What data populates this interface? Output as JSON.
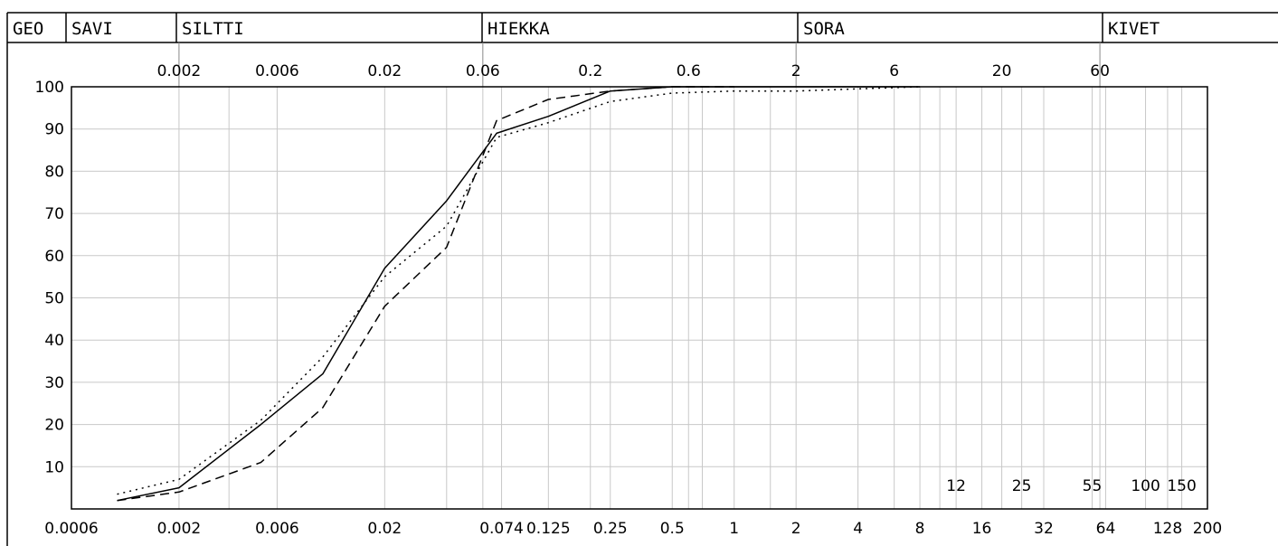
{
  "header": {
    "cells": [
      "GEO",
      "SAVI",
      "SILTTI",
      "HIEKKA",
      "SORA",
      "KIVET"
    ]
  },
  "chart_data": {
    "type": "line",
    "x_scale": "log",
    "xlim": [
      0.0006,
      200
    ],
    "ylim": [
      0,
      100
    ],
    "y_ticks": [
      10,
      20,
      30,
      40,
      50,
      60,
      70,
      80,
      90,
      100
    ],
    "bottom_ticks": [
      {
        "value": 0.0006,
        "label": "0.0006"
      },
      {
        "value": 0.002,
        "label": "0.002"
      },
      {
        "value": 0.006,
        "label": "0.006"
      },
      {
        "value": 0.02,
        "label": "0.02"
      },
      {
        "value": 0.074,
        "label": "0.074"
      },
      {
        "value": 0.125,
        "label": "0.125"
      },
      {
        "value": 0.25,
        "label": "0.25"
      },
      {
        "value": 0.5,
        "label": "0.5"
      },
      {
        "value": 1,
        "label": "1"
      },
      {
        "value": 2,
        "label": "2"
      },
      {
        "value": 4,
        "label": "4"
      },
      {
        "value": 8,
        "label": "8"
      },
      {
        "value": 16,
        "label": "16"
      },
      {
        "value": 32,
        "label": "32"
      },
      {
        "value": 64,
        "label": "64"
      },
      {
        "value": 128,
        "label": "128"
      },
      {
        "value": 200,
        "label": "200"
      }
    ],
    "top_ticks": [
      {
        "value": 0.002,
        "label": "0.002"
      },
      {
        "value": 0.006,
        "label": "0.006"
      },
      {
        "value": 0.02,
        "label": "0.02"
      },
      {
        "value": 0.06,
        "label": "0.06"
      },
      {
        "value": 0.2,
        "label": "0.2"
      },
      {
        "value": 0.6,
        "label": "0.6"
      },
      {
        "value": 2,
        "label": "2"
      },
      {
        "value": 6,
        "label": "6"
      },
      {
        "value": 20,
        "label": "20"
      },
      {
        "value": 60,
        "label": "60"
      }
    ],
    "inner_ticks": [
      {
        "value": 12,
        "label": "12"
      },
      {
        "value": 25,
        "label": "25"
      },
      {
        "value": 55,
        "label": "55"
      },
      {
        "value": 100,
        "label": "100"
      },
      {
        "value": 150,
        "label": "150"
      }
    ],
    "extra_gridlines": [
      0.0035,
      0.04,
      0.7,
      1.5,
      10,
      64
    ],
    "zone_boundaries": [
      0.002,
      0.06,
      2,
      60
    ],
    "series": [
      {
        "style": "solid",
        "x": [
          0.001,
          0.002,
          0.005,
          0.01,
          0.02,
          0.04,
          0.07,
          0.125,
          0.25,
          0.5,
          1,
          2,
          4,
          8
        ],
        "y": [
          2,
          5,
          20,
          32,
          57,
          73,
          89,
          93,
          99,
          100,
          100,
          100,
          100,
          100
        ]
      },
      {
        "style": "dashed",
        "x": [
          0.001,
          0.002,
          0.005,
          0.01,
          0.02,
          0.04,
          0.07,
          0.125,
          0.25,
          0.5,
          1
        ],
        "y": [
          2,
          4,
          11,
          24,
          48,
          62,
          92,
          97,
          99,
          100,
          100
        ]
      },
      {
        "style": "dotted",
        "x": [
          0.001,
          0.002,
          0.005,
          0.01,
          0.02,
          0.04,
          0.07,
          0.125,
          0.25,
          0.5,
          1,
          2,
          4,
          8
        ],
        "y": [
          3.5,
          7,
          21,
          36,
          55,
          67,
          88,
          91.5,
          96.5,
          98.5,
          99,
          99,
          99.5,
          100
        ]
      }
    ]
  }
}
